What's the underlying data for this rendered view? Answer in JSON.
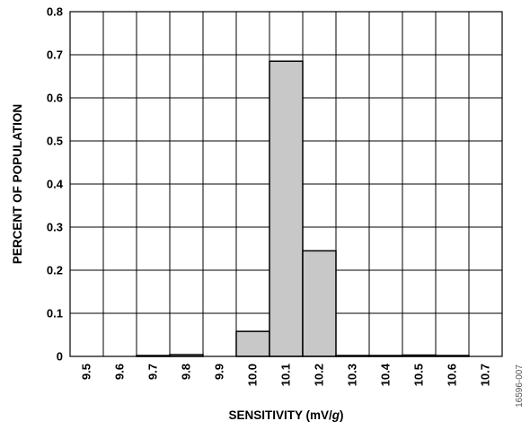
{
  "chart_data": {
    "type": "bar",
    "categories": [
      "9.5",
      "9.6",
      "9.7",
      "9.8",
      "9.9",
      "10.0",
      "10.1",
      "10.2",
      "10.3",
      "10.4",
      "10.5",
      "10.6",
      "10.7"
    ],
    "values": [
      0,
      0,
      0.002,
      0.004,
      0,
      0.058,
      0.685,
      0.245,
      0.002,
      0.002,
      0.003,
      0.002,
      0
    ],
    "xlabel_prefix": "SENSITIVITY (mV/",
    "xlabel_italic": "g",
    "xlabel_suffix": ")",
    "ylabel": "PERCENT OF POPULATION",
    "ylim": [
      0,
      0.8
    ],
    "yticks": [
      "0",
      "0.1",
      "0.2",
      "0.3",
      "0.4",
      "0.5",
      "0.6",
      "0.7",
      "0.8"
    ],
    "grid": true,
    "bar_color": "#c8c8c8"
  },
  "figure_id": "16596-007"
}
